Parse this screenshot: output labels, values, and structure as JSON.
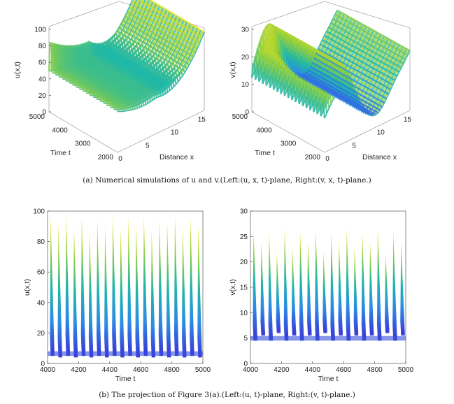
{
  "captions": {
    "top": "(a) Numerical simulations of u and v.(Left:(u, x, t)-plane, Right:(v, x, t)-plane.)",
    "bottom": "(b) The projection of Figure 3(a).(Left:(u, t)-plane, Right:(v, t)-plane.)"
  },
  "colors": {
    "low": "#3b33d6",
    "mid": "#1fb7a8",
    "high": "#f8e51c"
  },
  "chart_data": [
    {
      "type": "surface",
      "zlabel": "u(x,t)",
      "xlabel": "Distance x",
      "ylabel": "Time t",
      "zlim": [
        0,
        100
      ],
      "xlim": [
        0,
        16
      ],
      "ylim": [
        2000,
        5000
      ],
      "z_ticks": [
        "0",
        "20",
        "40",
        "60",
        "80",
        "100"
      ],
      "x_ticks": [
        "0",
        "5",
        "10",
        "15"
      ],
      "t_ticks": [
        "2000",
        "3000",
        "4000",
        "5000"
      ],
      "oscillation_count": 20
    },
    {
      "type": "surface",
      "zlabel": "v(x,t)",
      "xlabel": "Distance x",
      "ylabel": "Time t",
      "zlim": [
        0,
        30
      ],
      "xlim": [
        0,
        16
      ],
      "ylim": [
        2000,
        5000
      ],
      "z_ticks": [
        "0",
        "10",
        "20",
        "30"
      ],
      "x_ticks": [
        "0",
        "5",
        "10",
        "15"
      ],
      "t_ticks": [
        "2000",
        "3000",
        "4000",
        "5000"
      ],
      "oscillation_count": 20
    },
    {
      "type": "area",
      "xlabel": "Time t",
      "ylabel": "u(x,t)",
      "xlim": [
        4000,
        5000
      ],
      "ylim": [
        0,
        100
      ],
      "x_ticks": [
        "4000",
        "4200",
        "4400",
        "4600",
        "4800",
        "5000"
      ],
      "y_ticks": [
        "0",
        "20",
        "40",
        "60",
        "80",
        "100"
      ],
      "peaks": [
        {
          "t": 4020,
          "max": 96,
          "min": 5
        },
        {
          "t": 4070,
          "max": 92,
          "min": 4
        },
        {
          "t": 4120,
          "max": 98,
          "min": 5
        },
        {
          "t": 4170,
          "max": 90,
          "min": 4
        },
        {
          "t": 4220,
          "max": 97,
          "min": 5
        },
        {
          "t": 4270,
          "max": 88,
          "min": 4
        },
        {
          "t": 4320,
          "max": 95,
          "min": 5
        },
        {
          "t": 4370,
          "max": 91,
          "min": 4
        },
        {
          "t": 4420,
          "max": 98,
          "min": 5
        },
        {
          "t": 4470,
          "max": 89,
          "min": 4
        },
        {
          "t": 4520,
          "max": 96,
          "min": 5
        },
        {
          "t": 4570,
          "max": 92,
          "min": 4
        },
        {
          "t": 4620,
          "max": 97,
          "min": 5
        },
        {
          "t": 4670,
          "max": 88,
          "min": 4
        },
        {
          "t": 4720,
          "max": 95,
          "min": 5
        },
        {
          "t": 4770,
          "max": 93,
          "min": 4
        },
        {
          "t": 4820,
          "max": 98,
          "min": 5
        },
        {
          "t": 4870,
          "max": 90,
          "min": 4
        },
        {
          "t": 4920,
          "max": 96,
          "min": 5
        },
        {
          "t": 4970,
          "max": 91,
          "min": 4
        }
      ]
    },
    {
      "type": "area",
      "xlabel": "Time t",
      "ylabel": "v(x,t)",
      "xlim": [
        4000,
        5000
      ],
      "ylim": [
        0,
        30
      ],
      "x_ticks": [
        "4000",
        "4200",
        "4400",
        "4600",
        "4800",
        "5000"
      ],
      "y_ticks": [
        "0",
        "5",
        "10",
        "15",
        "20",
        "25",
        "30"
      ],
      "peaks": [
        {
          "t": 4020,
          "max": 26.5,
          "min": 4.5
        },
        {
          "t": 4070,
          "max": 24,
          "min": 5.5
        },
        {
          "t": 4120,
          "max": 26,
          "min": 4.5
        },
        {
          "t": 4170,
          "max": 22,
          "min": 6
        },
        {
          "t": 4220,
          "max": 26.5,
          "min": 4.5
        },
        {
          "t": 4270,
          "max": 23,
          "min": 5.5
        },
        {
          "t": 4320,
          "max": 26,
          "min": 4.5
        },
        {
          "t": 4370,
          "max": 24,
          "min": 5.5
        },
        {
          "t": 4420,
          "max": 26.5,
          "min": 4.5
        },
        {
          "t": 4470,
          "max": 22,
          "min": 6
        },
        {
          "t": 4520,
          "max": 26,
          "min": 4.5
        },
        {
          "t": 4570,
          "max": 24,
          "min": 5.5
        },
        {
          "t": 4620,
          "max": 26.5,
          "min": 4.5
        },
        {
          "t": 4670,
          "max": 23,
          "min": 5.5
        },
        {
          "t": 4720,
          "max": 26,
          "min": 4.5
        },
        {
          "t": 4770,
          "max": 24,
          "min": 5.5
        },
        {
          "t": 4820,
          "max": 26.5,
          "min": 4.5
        },
        {
          "t": 4870,
          "max": 22,
          "min": 6
        },
        {
          "t": 4920,
          "max": 26,
          "min": 4.5
        },
        {
          "t": 4970,
          "max": 24,
          "min": 5.5
        }
      ]
    }
  ]
}
